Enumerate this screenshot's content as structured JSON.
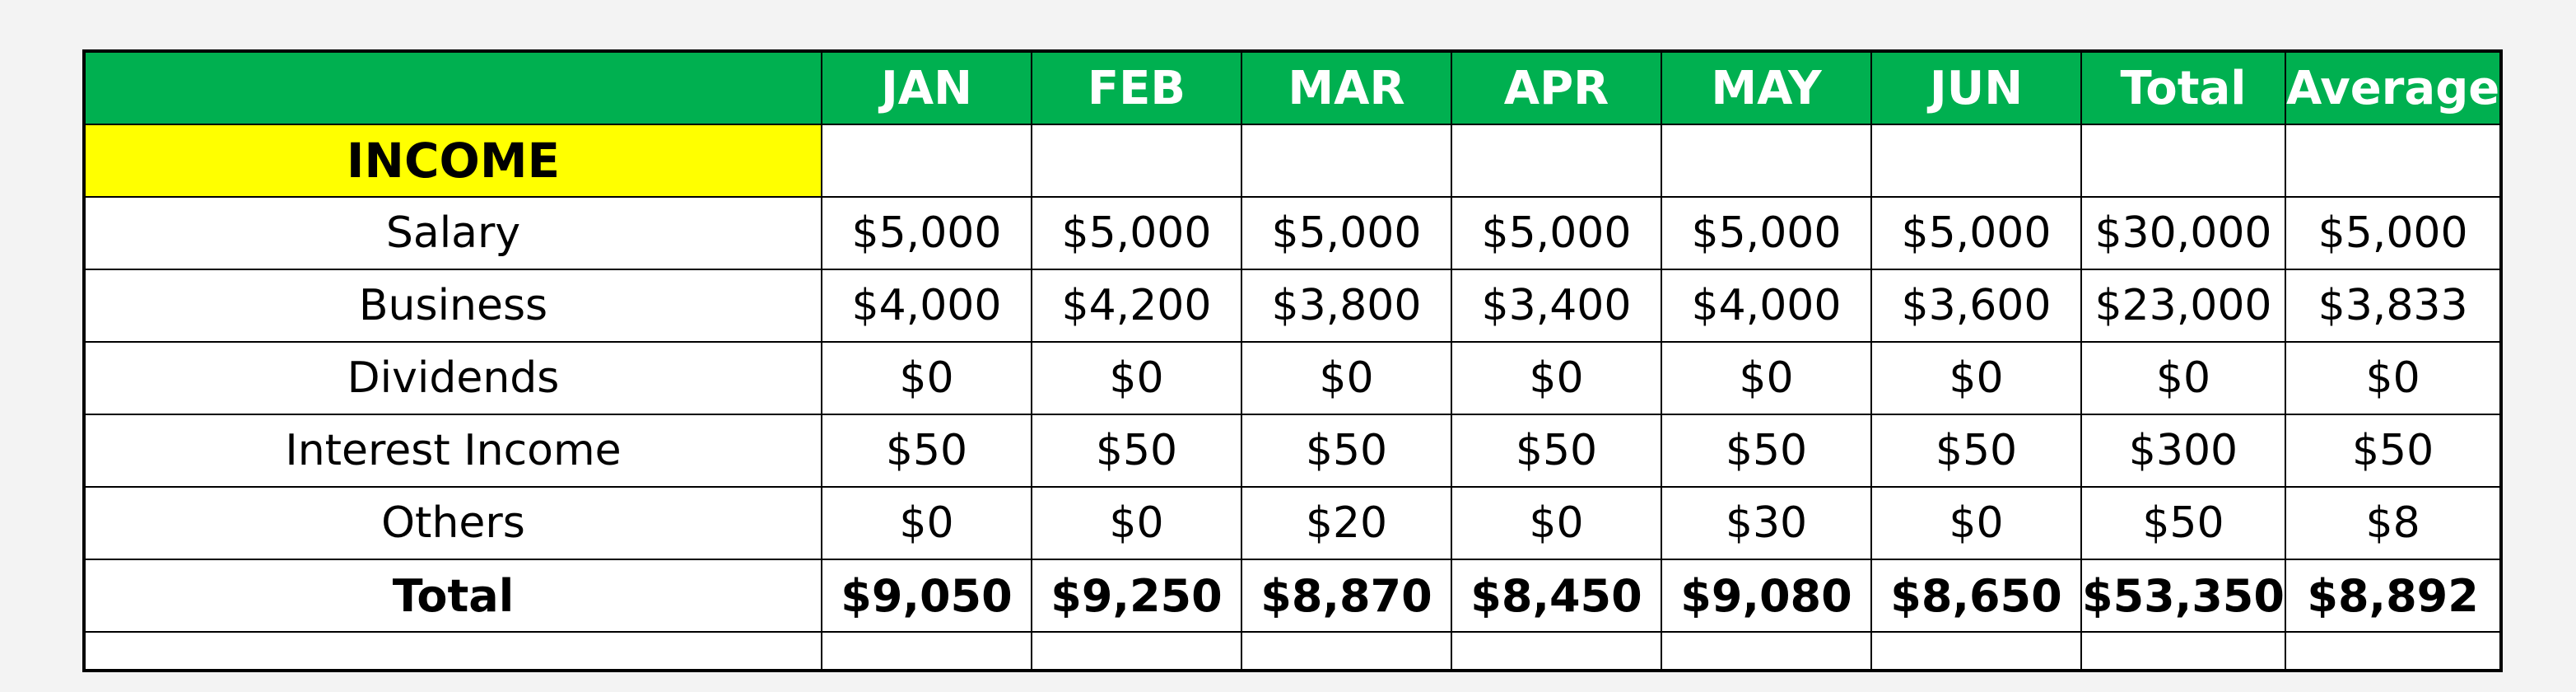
{
  "header": {
    "columns": [
      "JAN",
      "FEB",
      "MAR",
      "APR",
      "MAY",
      "JUN",
      "Total",
      "Average"
    ]
  },
  "section": {
    "label": "INCOME"
  },
  "rows": [
    {
      "label": "Salary",
      "values": [
        "$5,000",
        "$5,000",
        "$5,000",
        "$5,000",
        "$5,000",
        "$5,000",
        "$30,000",
        "$5,000"
      ]
    },
    {
      "label": "Business",
      "values": [
        "$4,000",
        "$4,200",
        "$3,800",
        "$3,400",
        "$4,000",
        "$3,600",
        "$23,000",
        "$3,833"
      ]
    },
    {
      "label": "Dividends",
      "values": [
        "$0",
        "$0",
        "$0",
        "$0",
        "$0",
        "$0",
        "$0",
        "$0"
      ]
    },
    {
      "label": "Interest Income",
      "values": [
        "$50",
        "$50",
        "$50",
        "$50",
        "$50",
        "$50",
        "$300",
        "$50"
      ]
    },
    {
      "label": "Others",
      "values": [
        "$0",
        "$0",
        "$20",
        "$0",
        "$30",
        "$0",
        "$50",
        "$8"
      ]
    }
  ],
  "total": {
    "label": "Total",
    "values": [
      "$9,050",
      "$9,250",
      "$8,870",
      "$8,450",
      "$9,080",
      "$8,650",
      "$53,350",
      "$8,892"
    ]
  },
  "colors": {
    "header_bg": "#00b050",
    "header_text": "#ffffff",
    "section_bg": "#ffff00"
  }
}
